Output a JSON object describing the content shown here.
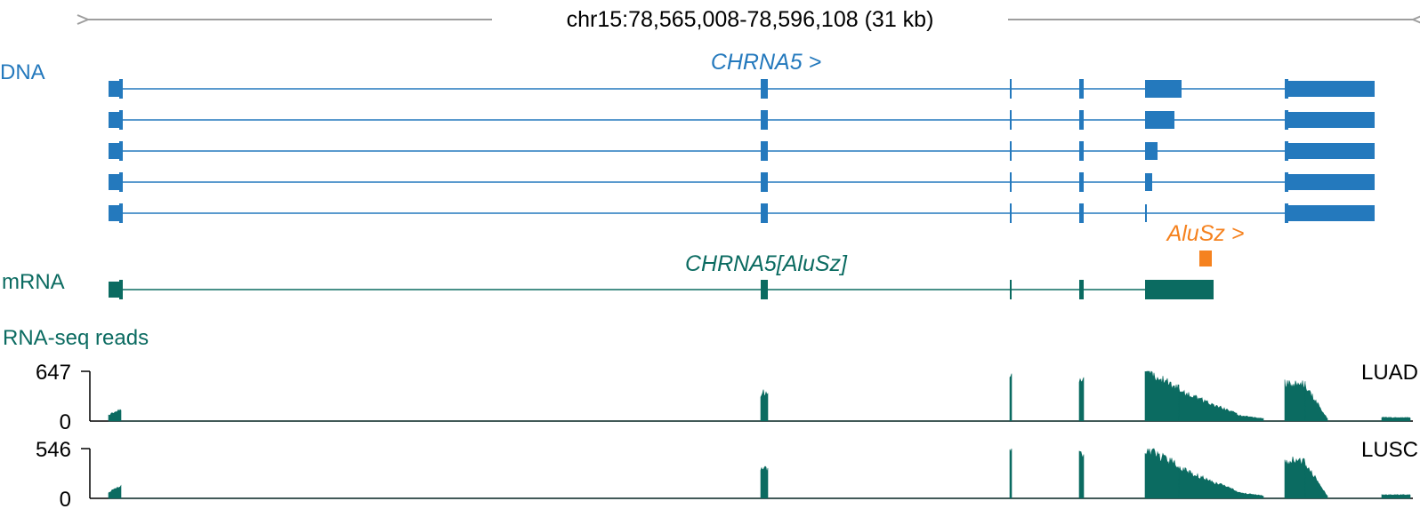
{
  "header": {
    "coordinates": "chr15:78,565,008-78,596,108 (31 kb)",
    "arrow_color": "#9e9e9e"
  },
  "colors": {
    "dna": "#2479bd",
    "mrna": "#0b6b61",
    "alu": "#f5821f",
    "axis": "#000000"
  },
  "dna_track": {
    "label": "DNA",
    "gene_label": "CHRNA5 >",
    "isoform_count": 5
  },
  "mrna_track": {
    "label": "mRNA",
    "transcript_label": "CHRNA5[AluSz]"
  },
  "repeat": {
    "label": "AluSz >"
  },
  "rnaseq": {
    "title": "RNA-seq reads",
    "tracks": [
      {
        "sample": "LUAD",
        "max_label": "647",
        "min_label": "0",
        "max_value": 647
      },
      {
        "sample": "LUSC",
        "max_label": "546",
        "min_label": "0",
        "max_value": 546
      }
    ]
  }
}
